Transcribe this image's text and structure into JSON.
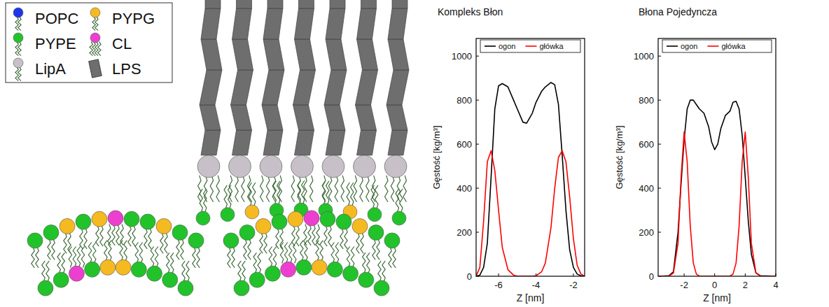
{
  "diagram": {
    "legend_items": [
      {
        "label": "POPC",
        "color": "#1f35e8"
      },
      {
        "label": "PYPG",
        "color": "#f5b922"
      },
      {
        "label": "PYPE",
        "color": "#22c32a"
      },
      {
        "label": "CL",
        "color": "#ec3fcf"
      },
      {
        "label": "LipA",
        "color": "#c8c0c8"
      },
      {
        "label": "LPS",
        "color": "#6e6e6e"
      }
    ]
  },
  "chart_data": [
    {
      "type": "line",
      "title": "Kompleks Błon",
      "x_label": "Z [nm]",
      "y_label": "Gęstość [kg/m³]",
      "x": [
        -7.2,
        -7.0,
        -6.8,
        -6.6,
        -6.4,
        -6.2,
        -6.0,
        -5.8,
        -5.5,
        -5.2,
        -5.0,
        -4.7,
        -4.5,
        -4.2,
        -4.0,
        -3.7,
        -3.5,
        -3.2,
        -3.0,
        -2.8,
        -2.6,
        -2.4,
        -2.2,
        -2.0,
        -1.8,
        -1.6,
        -1.4
      ],
      "series": [
        {
          "name": "ogon",
          "color": "#000000",
          "values": [
            0,
            5,
            40,
            150,
            450,
            760,
            865,
            875,
            860,
            800,
            760,
            700,
            695,
            740,
            790,
            840,
            860,
            880,
            870,
            780,
            550,
            300,
            120,
            40,
            10,
            2,
            0
          ]
        },
        {
          "name": "główka",
          "color": "#ff0000",
          "values": [
            0,
            40,
            250,
            520,
            570,
            480,
            300,
            130,
            30,
            5,
            0,
            0,
            0,
            0,
            2,
            20,
            60,
            220,
            400,
            540,
            570,
            520,
            360,
            170,
            50,
            10,
            0
          ]
        }
      ],
      "xlim": [
        -7.2,
        -1.4
      ],
      "ylim": [
        0,
        1080
      ],
      "xticks": [
        -6,
        -4,
        -2
      ],
      "yticks": [
        0,
        200,
        400,
        600,
        800,
        1000
      ],
      "legend": "top"
    },
    {
      "type": "line",
      "title": "Błona Pojedyncza",
      "x_label": "Z [nm]",
      "y_label": "Gęstość [kg/m³]",
      "x": [
        -3.6,
        -3.0,
        -2.7,
        -2.4,
        -2.2,
        -2.0,
        -1.8,
        -1.6,
        -1.4,
        -1.2,
        -1.0,
        -0.7,
        -0.4,
        -0.2,
        0,
        0.2,
        0.4,
        0.7,
        1.0,
        1.2,
        1.4,
        1.6,
        1.8,
        2.0,
        2.2,
        2.4,
        2.7,
        3.0,
        4.0
      ],
      "series": [
        {
          "name": "ogon",
          "color": "#000000",
          "values": [
            0,
            2,
            20,
            200,
            420,
            620,
            760,
            800,
            800,
            780,
            760,
            740,
            680,
            610,
            575,
            600,
            670,
            730,
            750,
            790,
            795,
            760,
            640,
            450,
            250,
            100,
            15,
            2,
            0
          ]
        },
        {
          "name": "główka",
          "color": "#ff0000",
          "values": [
            0,
            0,
            15,
            150,
            450,
            655,
            520,
            230,
            60,
            10,
            0,
            0,
            0,
            0,
            0,
            0,
            0,
            0,
            0,
            10,
            60,
            230,
            520,
            655,
            450,
            150,
            15,
            0,
            0
          ]
        }
      ],
      "xlim": [
        -3.7,
        4.0
      ],
      "ylim": [
        0,
        1080
      ],
      "xticks": [
        -2,
        0,
        2,
        4
      ],
      "yticks": [
        0,
        200,
        400,
        600,
        800,
        1000
      ],
      "legend": "top"
    }
  ]
}
